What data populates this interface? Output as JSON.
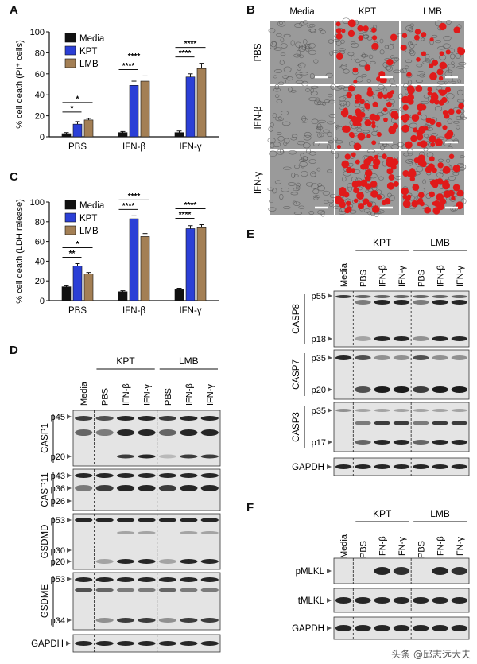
{
  "panels": {
    "A": "A",
    "B": "B",
    "C": "C",
    "D": "D",
    "E": "E",
    "F": "F"
  },
  "colors": {
    "media": "#111111",
    "kpt": "#2b3fd6",
    "lmb": "#a37f55",
    "red_cells": "#e01a1a",
    "micro_bg": "#9a9a9a",
    "blot_bg": "#e4e4e4",
    "band": "#111111"
  },
  "chart_data": [
    {
      "type": "bar",
      "panel": "A",
      "categories": [
        "PBS",
        "IFN-β",
        "IFN-γ"
      ],
      "series": [
        {
          "name": "Media",
          "values": [
            3,
            4,
            4
          ],
          "err": [
            1,
            1,
            1.5
          ]
        },
        {
          "name": "KPT",
          "values": [
            12,
            49,
            57
          ],
          "err": [
            2.5,
            4,
            3
          ]
        },
        {
          "name": "LMB",
          "values": [
            16,
            53,
            65
          ],
          "err": [
            1.5,
            5,
            5
          ]
        }
      ],
      "ylabel": "% cell death (PI⁺ cells)",
      "ylim": [
        0,
        100
      ],
      "yticks": [
        0,
        20,
        40,
        60,
        80,
        100
      ],
      "legend": "top-left",
      "significance": [
        "*",
        "*",
        "****",
        "****",
        "****",
        "****"
      ]
    },
    {
      "type": "bar",
      "panel": "C",
      "categories": [
        "PBS",
        "IFN-β",
        "IFN-γ"
      ],
      "series": [
        {
          "name": "Media",
          "values": [
            14,
            9,
            11
          ],
          "err": [
            1,
            1,
            1.5
          ]
        },
        {
          "name": "KPT",
          "values": [
            35,
            83,
            73
          ],
          "err": [
            2.5,
            3,
            3
          ]
        },
        {
          "name": "LMB",
          "values": [
            27,
            65,
            74
          ],
          "err": [
            1.5,
            3,
            3
          ]
        }
      ],
      "ylabel": "% cell death (LDH release)",
      "ylim": [
        0,
        100
      ],
      "yticks": [
        0,
        20,
        40,
        60,
        80,
        100
      ],
      "legend": "top-left",
      "significance": [
        "**",
        "*",
        "****",
        "****",
        "****",
        "****"
      ]
    }
  ],
  "micro": {
    "cols": [
      "Media",
      "KPT",
      "LMB"
    ],
    "rows": [
      "PBS",
      "IFN-β",
      "IFN-γ"
    ],
    "red_density": [
      [
        0,
        0.35,
        0.35
      ],
      [
        0,
        0.85,
        0.85
      ],
      [
        0,
        0.9,
        0.85
      ]
    ]
  },
  "blots": {
    "lanes": [
      "Media",
      "PBS",
      "IFN-β",
      "IFN-γ",
      "PBS",
      "IFN-β",
      "IFN-γ"
    ],
    "groups": [
      "KPT",
      "LMB"
    ],
    "D": {
      "CASP1": {
        "name": "CASP1",
        "markers": [
          "p45",
          "p20"
        ]
      },
      "CASP11": {
        "name": "CASP11",
        "markers": [
          "p43",
          "p36",
          "p26"
        ]
      },
      "GSDMD": {
        "name": "GSDMD",
        "markers": [
          "p53",
          "p30",
          "p20"
        ]
      },
      "GSDME": {
        "name": "GSDME",
        "markers": [
          "p53",
          "p34"
        ]
      },
      "GAPDH": {
        "name": "GAPDH"
      }
    },
    "E": {
      "CASP8": {
        "name": "CASP8",
        "markers": [
          "p55",
          "p18"
        ]
      },
      "CASP7": {
        "name": "CASP7",
        "markers": [
          "p35",
          "p20"
        ]
      },
      "CASP3": {
        "name": "CASP3",
        "markers": [
          "p35",
          "p17"
        ]
      },
      "GAPDH": {
        "name": "GAPDH"
      }
    },
    "F": {
      "pMLKL": {
        "name": "pMLKL"
      },
      "tMLKL": {
        "name": "tMLKL"
      },
      "GAPDH": {
        "name": "GAPDH"
      }
    }
  },
  "watermark": "头条 @邱志远大夫"
}
